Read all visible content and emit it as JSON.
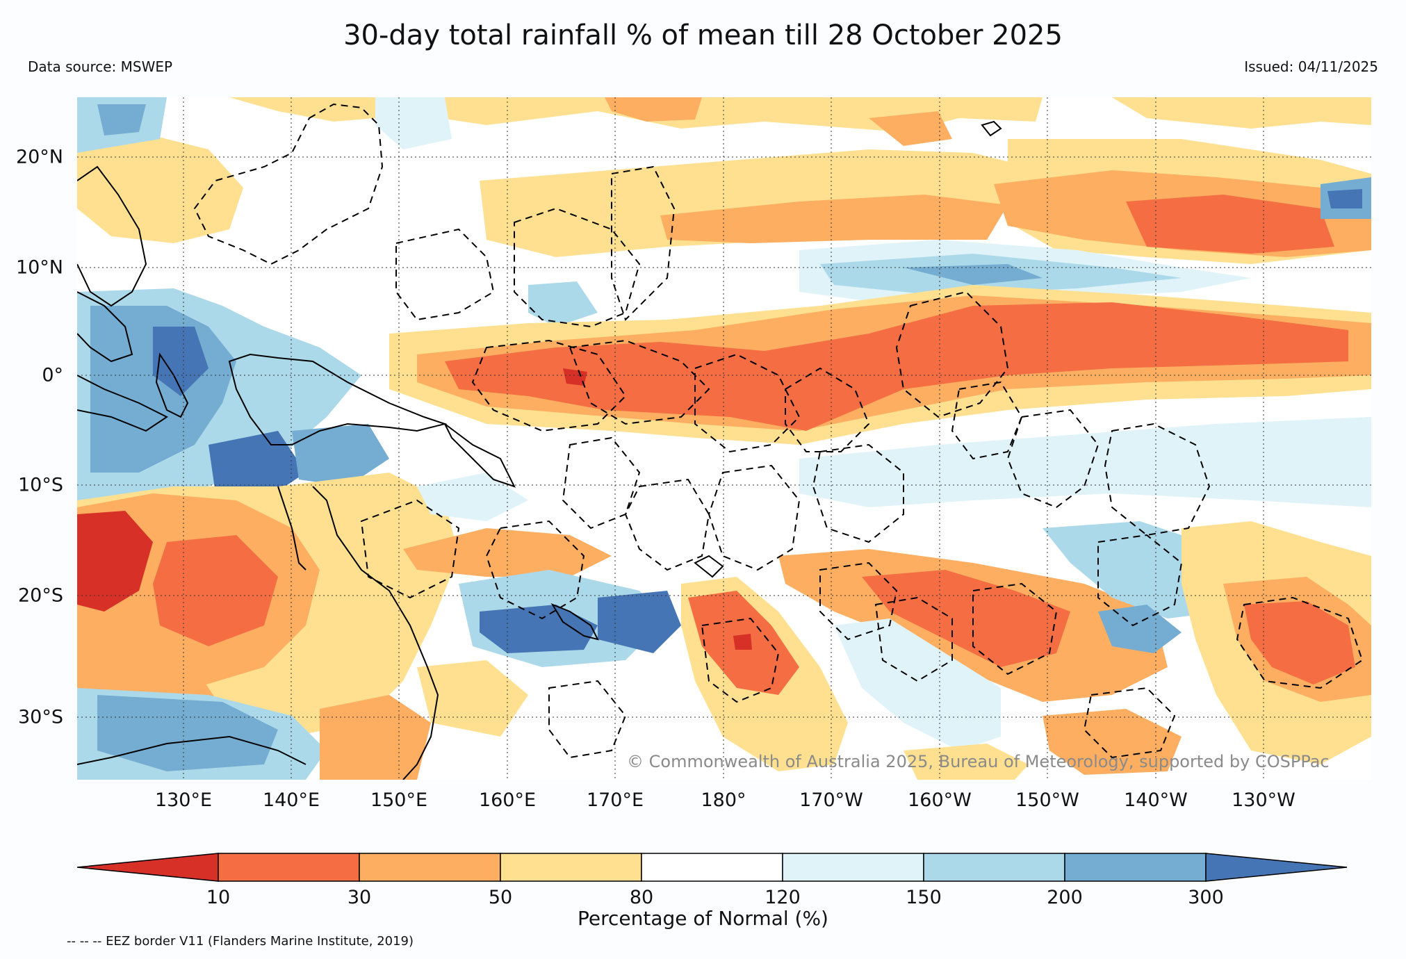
{
  "header": {
    "title": "30-day total rainfall % of mean till 28 October 2025",
    "source": "Data source: MSWEP",
    "issued": "Issued: 04/11/2025"
  },
  "map": {
    "lat_labels": [
      "20°N",
      "10°N",
      "0°",
      "10°S",
      "20°S",
      "30°S"
    ],
    "lon_labels": [
      "130°E",
      "140°E",
      "150°E",
      "160°E",
      "170°E",
      "180°",
      "170°W",
      "160°W",
      "150°W",
      "140°W",
      "130°W"
    ],
    "copyright": "© Commonwealth of Australia 2025, Bureau of Meteorology, supported by COSPPac"
  },
  "colorbar": {
    "ticks": [
      "10",
      "30",
      "50",
      "80",
      "120",
      "150",
      "200",
      "300"
    ],
    "title": "Percentage of Normal (%)",
    "colors": [
      "#d73027",
      "#f46d43",
      "#fdae61",
      "#fee090",
      "#ffffff",
      "#e0f3f8",
      "#abd9e9",
      "#74add1",
      "#4575b4"
    ]
  },
  "footer": {
    "eez_note": "-- -- -- EEZ border V11 (Flanders Marine Institute, 2019)"
  }
}
